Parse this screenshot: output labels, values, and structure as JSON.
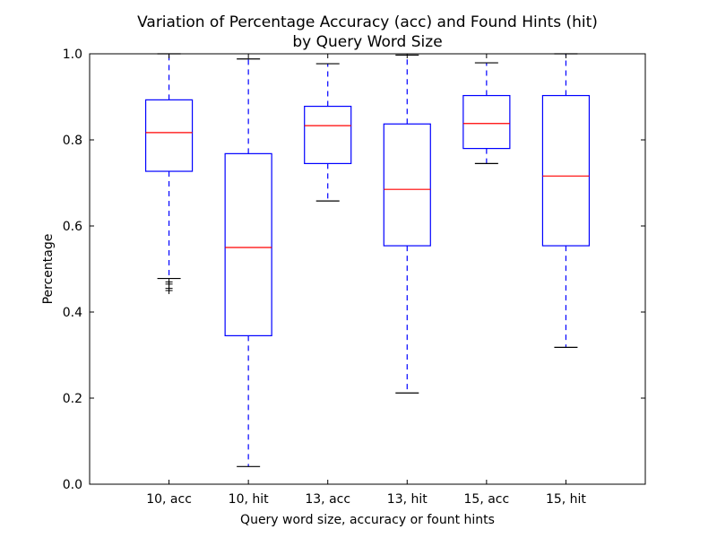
{
  "chart_data": {
    "type": "box",
    "title": [
      "Variation of Percentage Accuracy (acc) and Found Hints (hit)",
      "by Query Word Size"
    ],
    "xlabel": "Query word size, accuracy or fount hints",
    "ylabel": "Percentage",
    "ylim": [
      0.0,
      1.0
    ],
    "yticks": [
      "0.0",
      "0.2",
      "0.4",
      "0.6",
      "0.8",
      "1.0"
    ],
    "grid": false,
    "colors": {
      "box": "#0000ff",
      "median": "#ff0000",
      "cap": "#000000"
    },
    "boxes": [
      {
        "label": "10, acc",
        "whisker_low": 0.478,
        "q1": 0.727,
        "median": 0.817,
        "q3": 0.893,
        "whisker_high": 1.0,
        "outliers": [
          0.47,
          0.465,
          0.455,
          0.45
        ]
      },
      {
        "label": "10, hit",
        "whisker_low": 0.041,
        "q1": 0.345,
        "median": 0.55,
        "q3": 0.768,
        "whisker_high": 0.988,
        "outliers": []
      },
      {
        "label": "13, acc",
        "whisker_low": 0.658,
        "q1": 0.745,
        "median": 0.833,
        "q3": 0.878,
        "whisker_high": 0.977,
        "outliers": []
      },
      {
        "label": "13, hit",
        "whisker_low": 0.212,
        "q1": 0.554,
        "median": 0.685,
        "q3": 0.837,
        "whisker_high": 0.997,
        "outliers": []
      },
      {
        "label": "15, acc",
        "whisker_low": 0.745,
        "q1": 0.78,
        "median": 0.838,
        "q3": 0.903,
        "whisker_high": 0.979,
        "outliers": []
      },
      {
        "label": "15, hit",
        "whisker_low": 0.318,
        "q1": 0.554,
        "median": 0.716,
        "q3": 0.903,
        "whisker_high": 1.0,
        "outliers": []
      }
    ]
  }
}
